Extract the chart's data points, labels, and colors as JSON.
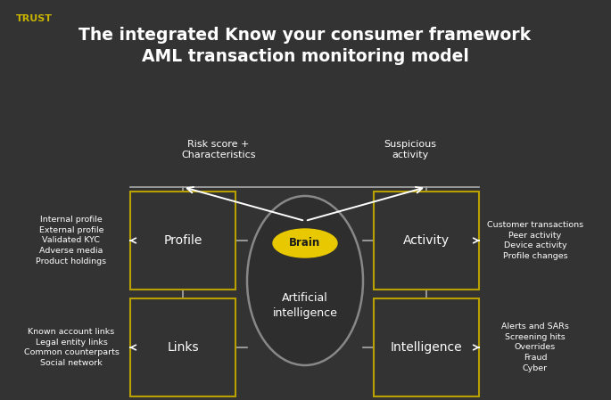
{
  "bg_color": "#333333",
  "title_line1": "The integrated Know your consumer framework",
  "title_line2": "AML transaction monitoring model",
  "trust_label": "TRUST",
  "trust_color": "#c8b400",
  "title_color": "#ffffff",
  "box_color": "#333333",
  "box_border_color": "#b8a000",
  "box_text_color": "#ffffff",
  "center_oval_fill": "#2e2e2e",
  "center_oval_border": "#888888",
  "brain_fill": "#e8c800",
  "center_text": "Brain",
  "center_subtext": "Artificial\nintelligence",
  "arrow_color": "#ffffff",
  "line_color": "#aaaaaa",
  "top_left_label": "Risk score +\nCharacteristics",
  "top_right_label": "Suspicious\nactivity",
  "left_top_label": "Internal profile\nExternal profile\nValidated KYC\nAdverse media\nProduct holdings",
  "left_bottom_label": "Known account links\nLegal entity links\nCommon counterparts\nSocial network",
  "right_top_label": "Customer transactions\nPeer activity\nDevice activity\nProfile changes",
  "right_bottom_label": "Alerts and SARs\nScreening hits\nOverrides\nFraud\nCyber",
  "box_profile": "Profile",
  "box_activity": "Activity",
  "box_links": "Links",
  "box_intelligence": "Intelligence"
}
